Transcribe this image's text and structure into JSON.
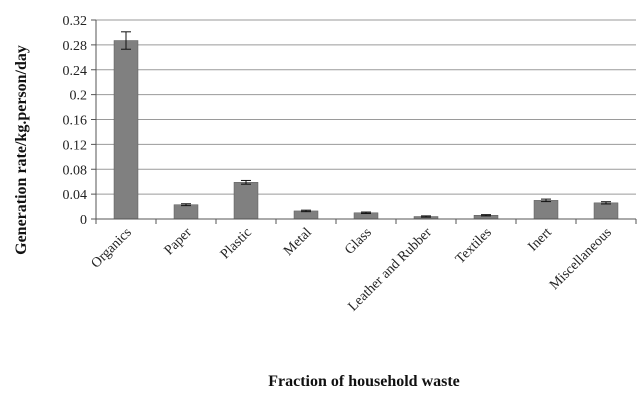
{
  "chart_data": {
    "type": "bar",
    "title": "",
    "xlabel": "Fraction of household waste",
    "ylabel": "Generation rate/kg.person/day",
    "categories": [
      "Organics",
      "Paper",
      "Plastic",
      "Metal",
      "Glass",
      "Leather and Rubber",
      "Textiles",
      "Inert",
      "Miscellaneous"
    ],
    "values": [
      0.287,
      0.023,
      0.059,
      0.013,
      0.01,
      0.004,
      0.006,
      0.03,
      0.026
    ],
    "errors": [
      0.014,
      0.0015,
      0.003,
      0.0012,
      0.0012,
      0.001,
      0.001,
      0.002,
      0.0018
    ],
    "ylim": [
      0,
      0.32
    ],
    "yticks": [
      "0",
      "0.04",
      "0.08",
      "0.12",
      "0.16",
      "0.2",
      "0.24",
      "0.28",
      "0.32"
    ],
    "grid": true,
    "legend": "none",
    "colors": {
      "bar": "#808080",
      "bar_edge": "#5a5a5a",
      "grid": "#9a9a9a",
      "axis": "#555555"
    }
  }
}
